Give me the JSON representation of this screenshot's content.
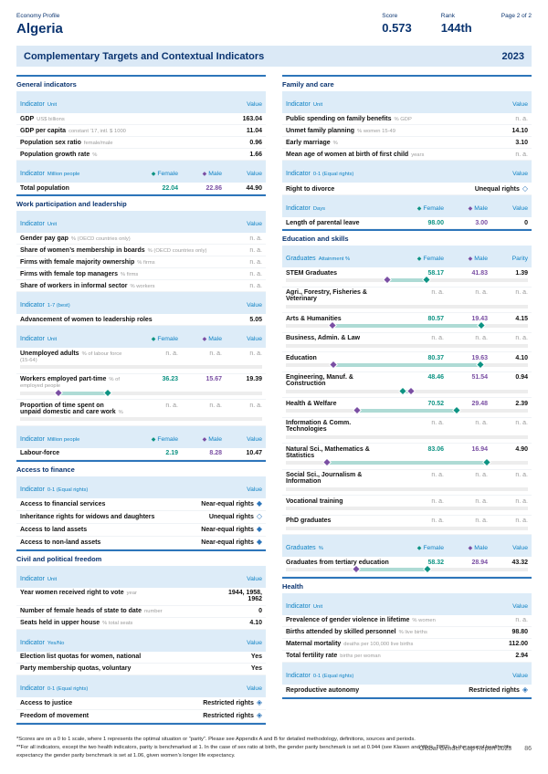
{
  "page": {
    "eyebrow": "Economy Profile",
    "country": "Algeria",
    "score_label": "Score",
    "score_value": "0.573",
    "rank_label": "Rank",
    "rank_value": "144th",
    "page_label": "Page 2 of 2",
    "band_title": "Complementary Targets and Contextual Indicators",
    "band_year": "2023",
    "footnote1": "*Scores are on a 0 to 1 scale, where 1 represents the optimal situation or “parity”. Please see Appendix A and B for detailed methodology, definitions, sources and periods.",
    "footnote2": "**For all indicators, except the two health indicators, parity is benchmarked at 1. In the case of sex ratio at birth, the gender parity benchmark is set at 0.944 (see Klasen and Wink, 2003). In the case of healthy life expectancy the gender parity benchmark is set at 1.06, given women’s longer life expectancy.",
    "footer_text": "Global Gender Gap Report 2023",
    "footer_page": "86"
  },
  "colors": {
    "navy": "#0a3470",
    "link_blue": "#0f82c4",
    "rule_blue": "#2d75ba",
    "band_bg": "#dbe9f6",
    "header_row_bg": "#ddecf8",
    "female_teal": "#0d9383",
    "male_purple": "#7a4fa3",
    "bar_fill": "#aedbd5",
    "na_gray": "#9b9b9b"
  },
  "icons": {
    "female_diamond": "◆",
    "male_diamond": "◆",
    "near-equal-rights": "◆",
    "restricted-rights": "◈",
    "unequal-rights": "◇"
  },
  "columns": {
    "left": [
      {
        "title": "General indicators",
        "blocks": [
          {
            "header": {
              "indicator": "Indicator",
              "unit": "Unit",
              "value": "Value"
            },
            "rows": [
              {
                "label": "GDP",
                "unit": "US$ billions",
                "value": "163.04"
              },
              {
                "label": "GDP per capita",
                "unit": "constant ’17, intl. $ 1000",
                "value": "11.04"
              },
              {
                "label": "Population sex ratio",
                "unit": "female/male",
                "value": "0.96"
              },
              {
                "label": "Population growth rate",
                "unit": "%",
                "value": "1.66"
              }
            ]
          },
          {
            "header": {
              "indicator": "Indicator",
              "unit": "Million people",
              "female": "Female",
              "male": "Male",
              "value": "Value"
            },
            "rows": [
              {
                "label": "Total population",
                "female": "22.04",
                "male": "22.86",
                "value": "44.90"
              }
            ]
          }
        ]
      },
      {
        "title": "Work participation and leadership",
        "blocks": [
          {
            "header": {
              "indicator": "Indicator",
              "unit": "Unit",
              "value": "Value"
            },
            "rows": [
              {
                "label": "Gender pay gap",
                "unit": "% (OECD countries only)",
                "value": "n. a."
              },
              {
                "label": "Share of women’s membership in boards",
                "unit": "% (OECD countries only)",
                "value": "n. a."
              },
              {
                "label": "Firms with female majority ownership",
                "unit": "% firms",
                "value": "n. a."
              },
              {
                "label": "Firms with female top managers",
                "unit": "% firms",
                "value": "n. a."
              },
              {
                "label": "Share of workers in informal sector",
                "unit": "% workers",
                "value": "n. a."
              }
            ]
          },
          {
            "header": {
              "indicator": "Indicator",
              "unit": "1-7 (best)",
              "value": "Value"
            },
            "rows": [
              {
                "label": "Advancement of women to leadership roles",
                "value": "5.05"
              }
            ]
          },
          {
            "header": {
              "indicator": "Indicator",
              "unit": "Unit",
              "female": "Female",
              "male": "Male",
              "value": "Value"
            },
            "rows": [
              {
                "label": "Unemployed adults",
                "unit": "% of labour force (15-64)",
                "female": "n. a.",
                "male": "n. a.",
                "value": "n. a.",
                "bar": "empty"
              },
              {
                "label": "Workers employed part-time",
                "unit": "% of employed people",
                "female": "36.23",
                "male": "15.67",
                "value": "19.39",
                "bar": {
                  "female_pct": 36.23,
                  "male_pct": 15.67
                }
              },
              {
                "label": "Proportion of time spent on unpaid domestic and care work",
                "unit": "%",
                "female": "n. a.",
                "male": "n. a.",
                "value": "n. a.",
                "bar": "empty"
              }
            ]
          },
          {
            "header": {
              "indicator": "Indicator",
              "unit": "Million people",
              "female": "Female",
              "male": "Male",
              "value": "Value"
            },
            "rows": [
              {
                "label": "Labour-force",
                "female": "2.19",
                "male": "8.28",
                "value": "10.47"
              }
            ]
          }
        ]
      },
      {
        "title": "Access to finance",
        "blocks": [
          {
            "header": {
              "indicator": "Indicator",
              "unit": "0-1 (Equal rights)",
              "value": "Value"
            },
            "rows": [
              {
                "label": "Access to financial services",
                "value": "Near-equal rights",
                "icon": "near-equal-rights"
              },
              {
                "label": "Inheritance rights for widows and daughters",
                "value": "Unequal rights",
                "icon": "unequal-rights"
              },
              {
                "label": "Access to land assets",
                "value": "Near-equal rights",
                "icon": "near-equal-rights"
              },
              {
                "label": "Access to non-land assets",
                "value": "Near-equal rights",
                "icon": "near-equal-rights"
              }
            ]
          }
        ]
      },
      {
        "title": "Civil and political freedom",
        "blocks": [
          {
            "header": {
              "indicator": "Indicator",
              "unit": "Unit",
              "value": "Value"
            },
            "rows": [
              {
                "label": "Year women received right to vote",
                "unit": "year",
                "value": "1944, 1958, 1962"
              },
              {
                "label": "Number of female heads of state to date",
                "unit": "number",
                "value": "0"
              },
              {
                "label": "Seats held in upper house",
                "unit": "% total seats",
                "value": "4.10"
              }
            ]
          },
          {
            "header": {
              "indicator": "Indicator",
              "unit": "Yes/No",
              "value": "Value"
            },
            "rows": [
              {
                "label": "Election list quotas for women, national",
                "value": "Yes"
              },
              {
                "label": "Party membership quotas, voluntary",
                "value": "Yes"
              }
            ]
          },
          {
            "header": {
              "indicator": "Indicator",
              "unit": "0-1 (Equal rights)",
              "value": "Value"
            },
            "rows": [
              {
                "label": "Access to justice",
                "value": "Restricted rights",
                "icon": "restricted-rights"
              },
              {
                "label": "Freedom of movement",
                "value": "Restricted rights",
                "icon": "restricted-rights"
              }
            ]
          }
        ]
      }
    ],
    "right": [
      {
        "title": "Family and care",
        "blocks": [
          {
            "header": {
              "indicator": "Indicator",
              "unit": "Unit",
              "value": "Value"
            },
            "rows": [
              {
                "label": "Public spending on family benefits",
                "unit": "% GDP",
                "value": "n. a."
              },
              {
                "label": "Unmet family planning",
                "unit": "% women 15-49",
                "value": "14.10"
              },
              {
                "label": "Early marriage",
                "unit": "%",
                "value": "3.10"
              },
              {
                "label": "Mean age of women at birth of first child",
                "unit": "years",
                "value": "n. a."
              }
            ]
          },
          {
            "header": {
              "indicator": "Indicator",
              "unit": "0-1 (Equal rights)",
              "value": "Value"
            },
            "rows": [
              {
                "label": "Right to divorce",
                "value": "Unequal rights",
                "icon": "unequal-rights"
              }
            ]
          },
          {
            "header": {
              "indicator": "Indicator",
              "unit": "Days",
              "female": "Female",
              "male": "Male",
              "value": "Value"
            },
            "rows": [
              {
                "label": "Length of parental leave",
                "female": "98.00",
                "male": "3.00",
                "value": "0"
              }
            ]
          }
        ]
      },
      {
        "title": "Education and skills",
        "blocks": [
          {
            "header": {
              "indicator": "Graduates",
              "unit": "Attainment %",
              "female": "Female",
              "male": "Male",
              "value": "Parity"
            },
            "rows": [
              {
                "label": "STEM Graduates",
                "female": "58.17",
                "male": "41.83",
                "value": "1.39",
                "bar": {
                  "female_pct": 58.17,
                  "male_pct": 41.83
                }
              },
              {
                "label": "Agri., Forestry, Fisheries & Veterinary",
                "female": "n. a.",
                "male": "n. a.",
                "value": "n. a.",
                "bar": "empty"
              },
              {
                "label": "Arts & Humanities",
                "female": "80.57",
                "male": "19.43",
                "value": "4.15",
                "bar": {
                  "female_pct": 80.57,
                  "male_pct": 19.43
                }
              },
              {
                "label": "Business, Admin. & Law",
                "female": "n. a.",
                "male": "n. a.",
                "value": "n. a.",
                "bar": "empty"
              },
              {
                "label": "Education",
                "female": "80.37",
                "male": "19.63",
                "value": "4.10",
                "bar": {
                  "female_pct": 80.37,
                  "male_pct": 19.63
                }
              },
              {
                "label": "Engineering, Manuf. & Construction",
                "female": "48.46",
                "male": "51.54",
                "value": "0.94",
                "bar": {
                  "female_pct": 48.46,
                  "male_pct": 51.54
                }
              },
              {
                "label": "Health & Welfare",
                "female": "70.52",
                "male": "29.48",
                "value": "2.39",
                "bar": {
                  "female_pct": 70.52,
                  "male_pct": 29.48
                }
              },
              {
                "label": "Information & Comm. Technologies",
                "female": "n. a.",
                "male": "n. a.",
                "value": "n. a.",
                "bar": "empty"
              },
              {
                "label": "Natural Sci., Mathematics & Statistics",
                "female": "83.06",
                "male": "16.94",
                "value": "4.90",
                "bar": {
                  "female_pct": 83.06,
                  "male_pct": 16.94
                }
              },
              {
                "label": "Social Sci., Journalism & Information",
                "female": "n. a.",
                "male": "n. a.",
                "value": "n. a.",
                "bar": "empty"
              },
              {
                "label": "Vocational training",
                "female": "n. a.",
                "male": "n. a.",
                "value": "n. a.",
                "bar": "empty"
              },
              {
                "label": "PhD graduates",
                "female": "n. a.",
                "male": "n. a.",
                "value": "n. a.",
                "bar": "empty"
              }
            ]
          },
          {
            "header": {
              "indicator": "Graduates",
              "unit": "%",
              "female": "Female",
              "male": "Male",
              "value": "Value"
            },
            "rows": [
              {
                "label": "Graduates from tertiary education",
                "female": "58.32",
                "male": "28.94",
                "value": "43.32",
                "bar": {
                  "female_pct": 58.32,
                  "male_pct": 28.94
                }
              }
            ]
          }
        ]
      },
      {
        "title": "Health",
        "blocks": [
          {
            "header": {
              "indicator": "Indicator",
              "unit": "Unit",
              "value": "Value"
            },
            "rows": [
              {
                "label": "Prevalence of gender violence in lifetime",
                "unit": "% women",
                "value": "n. a."
              },
              {
                "label": "Births attended by skilled personnel",
                "unit": "% live births",
                "value": "98.80"
              },
              {
                "label": "Maternal mortality",
                "unit": "deaths per 100,000 live births",
                "value": "112.00"
              },
              {
                "label": "Total fertility rate",
                "unit": "births per woman",
                "value": "2.94"
              }
            ]
          },
          {
            "header": {
              "indicator": "Indicator",
              "unit": "0-1 (Equal rights)",
              "value": "Value"
            },
            "rows": [
              {
                "label": "Reproductive autonomy",
                "value": "Restricted rights",
                "icon": "restricted-rights"
              }
            ]
          }
        ]
      }
    ]
  }
}
